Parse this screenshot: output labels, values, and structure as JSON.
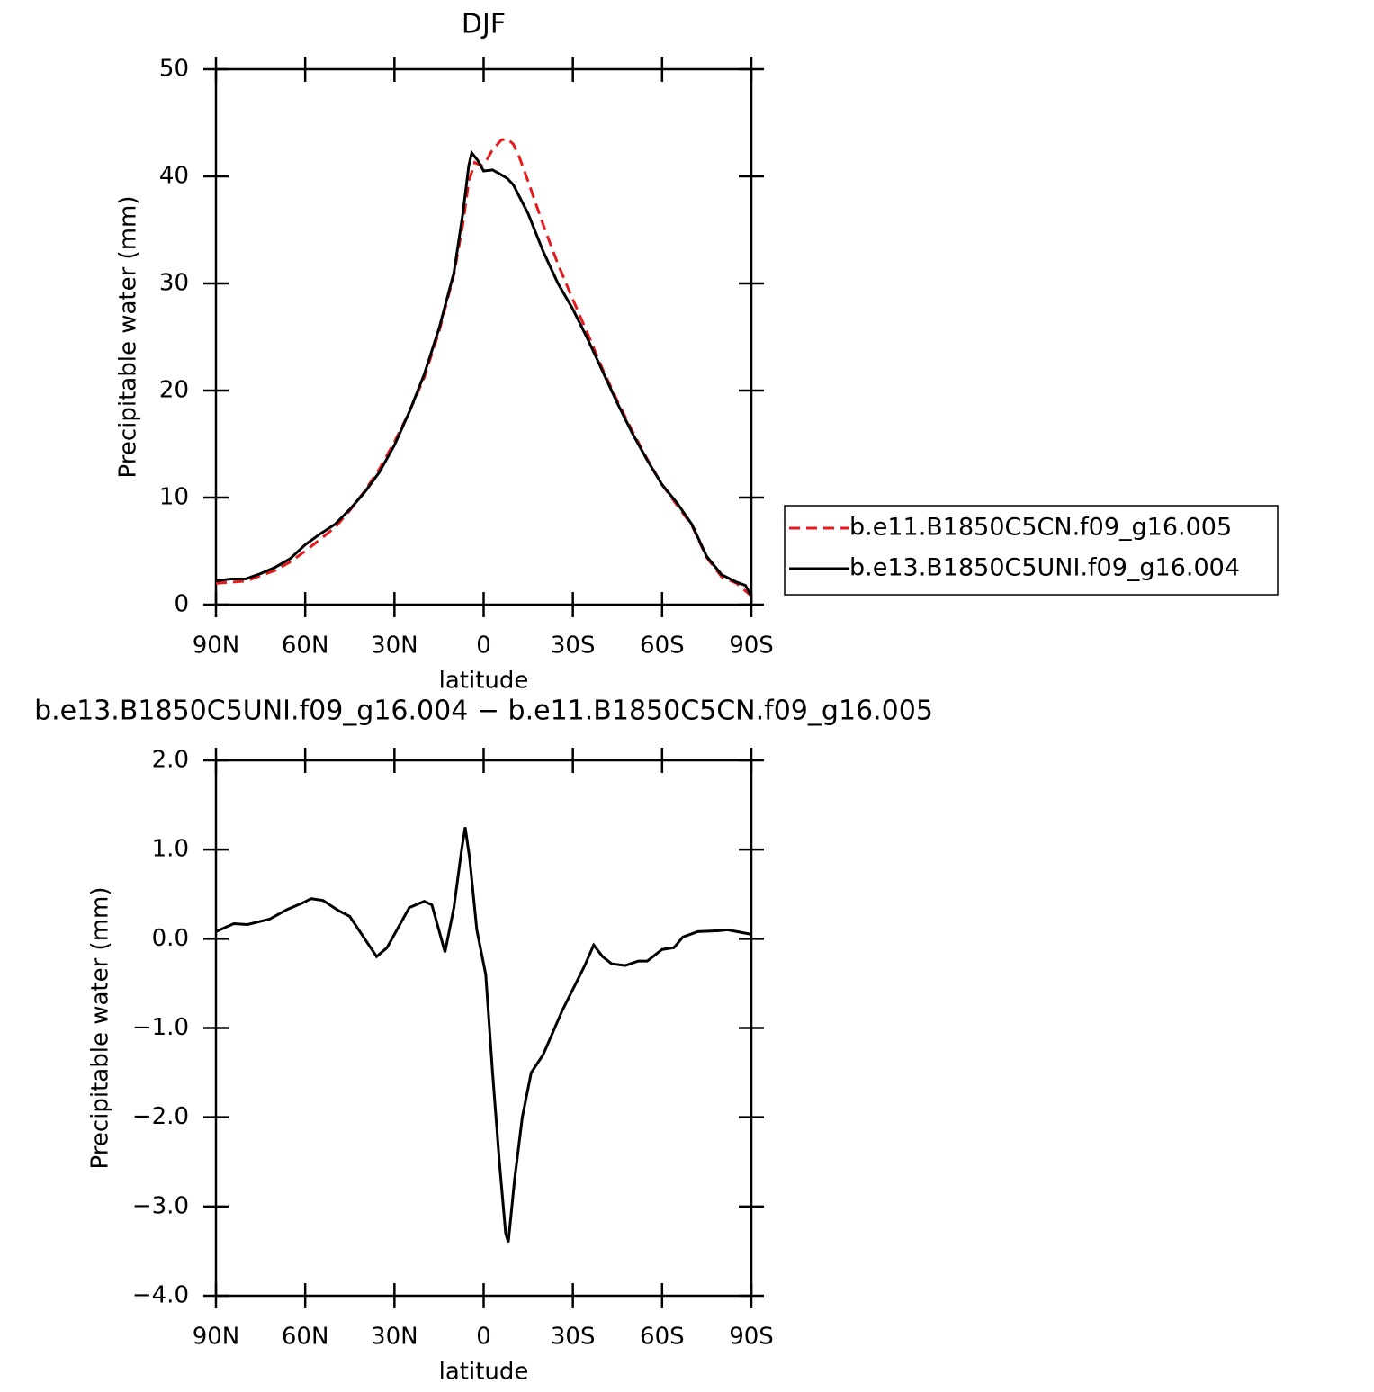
{
  "chart_data": [
    {
      "type": "line",
      "title": "DJF",
      "xlabel": "latitude",
      "ylabel": "Precipitable water (mm)",
      "xlim": [
        90,
        -90
      ],
      "xticks": [
        {
          "value": 90,
          "label": "90N"
        },
        {
          "value": 60,
          "label": "60N"
        },
        {
          "value": 30,
          "label": "30N"
        },
        0,
        {
          "value": -30,
          "label": "30S"
        },
        {
          "value": -60,
          "label": "60S"
        },
        {
          "value": -90,
          "label": "90S"
        }
      ],
      "ylim": [
        0,
        50
      ],
      "yticks": [
        0,
        10,
        20,
        30,
        40,
        50
      ],
      "legend": "right",
      "series": [
        {
          "name": "b.e11.B1850C5CN.f09_g16.005",
          "color": "#e41a1c",
          "dash": true,
          "x": [
            90,
            85,
            80,
            75,
            70,
            65,
            60,
            55,
            50,
            45,
            40,
            35,
            30,
            25,
            20,
            15,
            10,
            7,
            5,
            3,
            1,
            -1,
            -3,
            -6,
            -8,
            -10,
            -12,
            -15,
            -20,
            -25,
            -30,
            -35,
            -40,
            -45,
            -50,
            -55,
            -60,
            -65,
            -70,
            -75,
            -80,
            -85,
            -90
          ],
          "values": [
            2.0,
            2.1,
            2.2,
            2.7,
            3.2,
            4.0,
            5.0,
            6.1,
            7.2,
            8.8,
            10.6,
            12.7,
            15.2,
            18.0,
            21.2,
            25.5,
            30.8,
            35.5,
            39.5,
            41.3,
            41.0,
            41.5,
            42.5,
            43.4,
            43.5,
            43.0,
            41.8,
            39.5,
            35.5,
            31.8,
            28.5,
            25.3,
            22.0,
            19.0,
            16.2,
            13.6,
            11.2,
            9.3,
            7.4,
            4.4,
            2.6,
            2.0,
            0.8
          ]
        },
        {
          "name": "b.e13.B1850C5UNI.f09_g16.004",
          "color": "#000000",
          "dash": false,
          "x": [
            90,
            85,
            80,
            75,
            70,
            65,
            60,
            55,
            50,
            45,
            40,
            35,
            30,
            25,
            20,
            15,
            10,
            7,
            5,
            4,
            2,
            0,
            -3,
            -5,
            -8,
            -10,
            -15,
            -20,
            -25,
            -30,
            -35,
            -40,
            -45,
            -50,
            -55,
            -60,
            -65,
            -70,
            -75,
            -80,
            -85,
            -88,
            -90
          ],
          "values": [
            2.2,
            2.4,
            2.4,
            2.9,
            3.5,
            4.3,
            5.6,
            6.6,
            7.5,
            8.9,
            10.5,
            12.4,
            14.9,
            18.0,
            21.5,
            25.8,
            31.0,
            36.5,
            41.0,
            42.2,
            41.5,
            40.5,
            40.6,
            40.3,
            39.8,
            39.2,
            36.5,
            33.0,
            30.0,
            27.6,
            24.8,
            21.8,
            18.8,
            16.0,
            13.5,
            11.2,
            9.5,
            7.5,
            4.5,
            2.8,
            2.1,
            1.8,
            0.8
          ]
        }
      ]
    },
    {
      "type": "line",
      "title": "b.e13.B1850C5UNI.f09_g16.004 − b.e11.B1850C5CN.f09_g16.005",
      "xlabel": "latitude",
      "ylabel": "Precipitable water (mm)",
      "xlim": [
        90,
        -90
      ],
      "xticks": [
        {
          "value": 90,
          "label": "90N"
        },
        {
          "value": 60,
          "label": "60N"
        },
        {
          "value": 30,
          "label": "30N"
        },
        0,
        {
          "value": -30,
          "label": "30S"
        },
        {
          "value": -60,
          "label": "60S"
        },
        {
          "value": -90,
          "label": "90S"
        }
      ],
      "ylim": [
        -4,
        2
      ],
      "yticks": [
        {
          "value": -4,
          "label": "−4.0"
        },
        {
          "value": -3,
          "label": "−3.0"
        },
        {
          "value": -2,
          "label": "−2.0"
        },
        {
          "value": -1,
          "label": "−1.0"
        },
        {
          "value": 0,
          "label": "0.0"
        },
        {
          "value": 1,
          "label": "1.0"
        },
        {
          "value": 2,
          "label": "2.0"
        }
      ],
      "series": [
        {
          "color": "#000000",
          "dash": false,
          "x": [
            90,
            84,
            79.4,
            72,
            66,
            61,
            58,
            54,
            49,
            45,
            40,
            36,
            32.5,
            25,
            20,
            17.4,
            13,
            10,
            7.4,
            6.2,
            4.7,
            2.3,
            -0.7,
            -3,
            -5.3,
            -7.4,
            -8.3,
            -10.4,
            -13,
            -16,
            -20,
            -26.5,
            -31,
            -34,
            -37,
            -40,
            -43,
            -47.6,
            -52,
            -55,
            -60,
            -64,
            -67,
            -72,
            -79,
            -82,
            -90
          ],
          "values": [
            0.08,
            0.17,
            0.16,
            0.22,
            0.33,
            0.4,
            0.45,
            0.43,
            0.32,
            0.25,
            0.0,
            -0.2,
            -0.1,
            0.35,
            0.42,
            0.38,
            -0.15,
            0.35,
            1.0,
            1.25,
            0.9,
            0.1,
            -0.4,
            -1.5,
            -2.5,
            -3.3,
            -3.4,
            -2.7,
            -2.0,
            -1.5,
            -1.3,
            -0.8,
            -0.5,
            -0.3,
            -0.07,
            -0.2,
            -0.28,
            -0.3,
            -0.25,
            -0.25,
            -0.12,
            -0.1,
            0.02,
            0.08,
            0.09,
            0.1,
            0.05
          ]
        }
      ]
    }
  ]
}
